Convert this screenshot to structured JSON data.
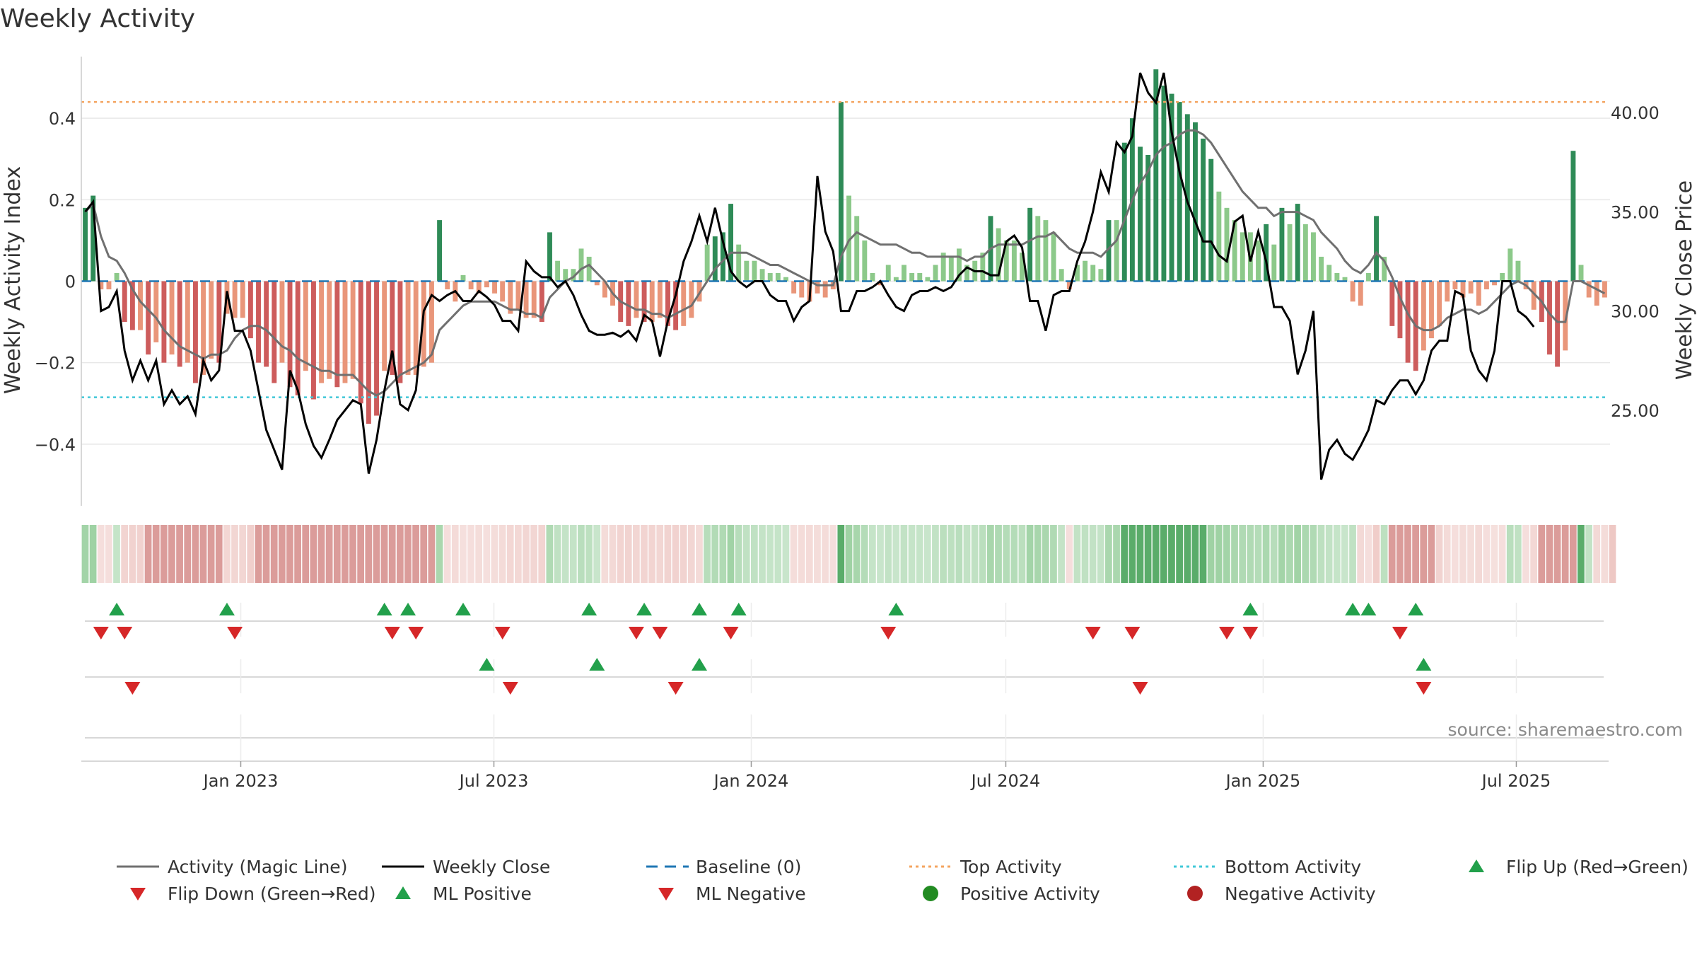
{
  "chart_data": {
    "type": "bar",
    "title": "Weekly Activity",
    "ylabel_left": "Weekly Activity Index",
    "ylabel_right": "Weekly Close Price",
    "source": "source: sharemaestro.com",
    "x_start": "2022-09-09",
    "x_end": "2025-09-05",
    "left_ylim": [
      -0.56,
      0.56
    ],
    "right_ylim": [
      20.0,
      43.0
    ],
    "left_ticks": [
      "0.4",
      "0.2",
      "0",
      "−0.2",
      "−0.4"
    ],
    "left_tick_values": [
      0.4,
      0.2,
      0,
      -0.2,
      -0.4
    ],
    "right_ticks": [
      "40.00",
      "35.00",
      "30.00",
      "25.00"
    ],
    "right_tick_values": [
      40,
      35,
      30,
      25
    ],
    "x_ticks": [
      "Jan 2023",
      "Jul 2023",
      "Jan 2024",
      "Jul 2024",
      "Jan 2025",
      "Jul 2025"
    ],
    "x_tick_dates": [
      "2023-01-01",
      "2023-07-01",
      "2024-01-01",
      "2024-07-01",
      "2025-01-01",
      "2025-07-01"
    ],
    "top_activity": 0.44,
    "bottom_activity": -0.285,
    "baseline": 0,
    "colors": {
      "pos_strong": "#2e8b57",
      "pos_light": "#8cc98a",
      "neg_strong": "#cd5c5c",
      "neg_light": "#e9967a",
      "magic_line": "#707070",
      "close_line": "#000000",
      "baseline": "#1f77b4",
      "top": "#f4a460",
      "bottom": "#40c8d8",
      "flip_up": "#22a04b",
      "flip_down": "#d62728",
      "pos_dot": "#228b22",
      "neg_dot": "#b22222"
    },
    "series": [
      {
        "name": "Activity",
        "type": "bar",
        "values": [
          0.18,
          0.21,
          -0.02,
          -0.02,
          0.02,
          -0.1,
          -0.12,
          -0.12,
          -0.18,
          -0.15,
          -0.2,
          -0.18,
          -0.21,
          -0.2,
          -0.25,
          -0.23,
          -0.19,
          -0.2,
          -0.08,
          -0.09,
          -0.09,
          -0.14,
          -0.2,
          -0.21,
          -0.25,
          -0.2,
          -0.26,
          -0.28,
          -0.22,
          -0.29,
          -0.25,
          -0.24,
          -0.26,
          -0.25,
          -0.24,
          -0.3,
          -0.35,
          -0.33,
          -0.22,
          -0.23,
          -0.25,
          -0.23,
          -0.23,
          -0.21,
          -0.2,
          0.15,
          -0.02,
          -0.05,
          0.015,
          -0.02,
          -0.03,
          -0.015,
          -0.03,
          -0.05,
          -0.08,
          -0.07,
          -0.09,
          -0.09,
          -0.1,
          0.12,
          0.05,
          0.03,
          0.03,
          0.08,
          0.06,
          -0.01,
          -0.04,
          -0.06,
          -0.1,
          -0.11,
          -0.09,
          -0.1,
          -0.1,
          -0.09,
          -0.11,
          -0.12,
          -0.11,
          -0.09,
          -0.05,
          0.09,
          0.11,
          0.12,
          0.19,
          0.09,
          0.05,
          0.05,
          0.03,
          0.02,
          0.02,
          0.01,
          -0.03,
          -0.04,
          -0.05,
          -0.03,
          -0.04,
          -0.02,
          0.44,
          0.21,
          0.16,
          0.1,
          0.02,
          -0.01,
          0.04,
          0.01,
          0.04,
          0.02,
          0.02,
          0.01,
          0.04,
          0.07,
          0.06,
          0.08,
          0.04,
          0.05,
          0.07,
          0.16,
          0.13,
          0.1,
          0.1,
          0.07,
          0.18,
          0.16,
          0.15,
          0.12,
          0.03,
          -0.02,
          0.04,
          0.05,
          0.04,
          0.03,
          0.15,
          0.15,
          0.34,
          0.4,
          0.33,
          0.31,
          0.52,
          0.48,
          0.46,
          0.44,
          0.41,
          0.39,
          0.35,
          0.3,
          0.22,
          0.18,
          0.15,
          0.12,
          0.12,
          0.1,
          0.14,
          0.09,
          0.18,
          0.14,
          0.19,
          0.14,
          0.12,
          0.06,
          0.04,
          0.02,
          0.01,
          -0.05,
          -0.06,
          0.02,
          0.16,
          0.06,
          -0.11,
          -0.14,
          -0.2,
          -0.22,
          -0.17,
          -0.14,
          -0.11,
          -0.05,
          -0.02,
          -0.04,
          -0.03,
          -0.06,
          -0.02,
          -0.01,
          0.02,
          0.08,
          0.05,
          -0.02,
          -0.07,
          -0.1,
          -0.18,
          -0.21,
          -0.17,
          0.32,
          0.04,
          -0.04,
          -0.06,
          -0.04
        ]
      },
      {
        "name": "Activity (Magic Line)",
        "type": "line",
        "values": [
          0.17,
          0.19,
          0.11,
          0.06,
          0.05,
          0.02,
          -0.02,
          -0.05,
          -0.07,
          -0.09,
          -0.12,
          -0.14,
          -0.16,
          -0.17,
          -0.18,
          -0.19,
          -0.18,
          -0.18,
          -0.17,
          -0.14,
          -0.12,
          -0.11,
          -0.11,
          -0.12,
          -0.14,
          -0.16,
          -0.17,
          -0.19,
          -0.2,
          -0.21,
          -0.22,
          -0.22,
          -0.23,
          -0.23,
          -0.23,
          -0.25,
          -0.27,
          -0.28,
          -0.27,
          -0.25,
          -0.23,
          -0.22,
          -0.21,
          -0.2,
          -0.18,
          -0.12,
          -0.1,
          -0.08,
          -0.06,
          -0.05,
          -0.05,
          -0.05,
          -0.05,
          -0.06,
          -0.07,
          -0.07,
          -0.08,
          -0.08,
          -0.09,
          -0.04,
          -0.02,
          0,
          0.01,
          0.03,
          0.04,
          0.02,
          0,
          -0.03,
          -0.05,
          -0.06,
          -0.07,
          -0.07,
          -0.08,
          -0.08,
          -0.09,
          -0.08,
          -0.07,
          -0.06,
          -0.03,
          0,
          0.03,
          0.05,
          0.07,
          0.07,
          0.07,
          0.06,
          0.05,
          0.04,
          0.04,
          0.03,
          0.02,
          0.01,
          0,
          -0.01,
          -0.01,
          -0.01,
          0.06,
          0.1,
          0.12,
          0.11,
          0.1,
          0.09,
          0.09,
          0.09,
          0.08,
          0.07,
          0.07,
          0.06,
          0.06,
          0.06,
          0.06,
          0.06,
          0.05,
          0.06,
          0.06,
          0.08,
          0.09,
          0.09,
          0.09,
          0.09,
          0.1,
          0.11,
          0.11,
          0.12,
          0.1,
          0.08,
          0.07,
          0.07,
          0.07,
          0.06,
          0.08,
          0.1,
          0.15,
          0.2,
          0.24,
          0.27,
          0.31,
          0.33,
          0.34,
          0.36,
          0.37,
          0.37,
          0.36,
          0.34,
          0.31,
          0.28,
          0.25,
          0.22,
          0.2,
          0.18,
          0.18,
          0.16,
          0.17,
          0.17,
          0.17,
          0.16,
          0.15,
          0.12,
          0.1,
          0.08,
          0.05,
          0.03,
          0.02,
          0.04,
          0.07,
          0.05,
          0.01,
          -0.04,
          -0.08,
          -0.11,
          -0.12,
          -0.12,
          -0.11,
          -0.09,
          -0.08,
          -0.07,
          -0.07,
          -0.08,
          -0.07,
          -0.05,
          -0.03,
          -0.01,
          0,
          -0.01,
          -0.03,
          -0.05,
          -0.08,
          -0.1,
          -0.1,
          0.0,
          0.0,
          -0.01,
          -0.02,
          -0.03
        ]
      },
      {
        "name": "Weekly Close",
        "type": "line",
        "axis": "right",
        "values": [
          35,
          35.5,
          30,
          30.2,
          31,
          28,
          26.5,
          27.5,
          26.5,
          27.5,
          25.3,
          26,
          25.3,
          25.7,
          24.8,
          27.5,
          26.5,
          27,
          31,
          29,
          29,
          28,
          26,
          24,
          23,
          22,
          27,
          26,
          24.3,
          23.2,
          22.6,
          23.5,
          24.5,
          25,
          25.5,
          25.3,
          21.8,
          23.5,
          26,
          28,
          25.3,
          25,
          26,
          30,
          30.8,
          30.5,
          30.8,
          31,
          30.5,
          30.5,
          31,
          30.7,
          30.3,
          29.5,
          29.5,
          29,
          32.5,
          32,
          31.7,
          31.7,
          31.2,
          31.5,
          30.8,
          29.8,
          29,
          28.8,
          28.8,
          28.9,
          28.7,
          29,
          28.5,
          29.8,
          29.5,
          27.7,
          29.5,
          30.8,
          32.5,
          33.5,
          34.8,
          33.5,
          35.2,
          33.5,
          32,
          31.5,
          31.2,
          31.5,
          31.5,
          30.8,
          30.5,
          30.5,
          29.5,
          30.2,
          30.5,
          36.8,
          34,
          33,
          30,
          30,
          31,
          31,
          31.2,
          31.5,
          30.8,
          30.2,
          30,
          30.8,
          31,
          31,
          31.2,
          31,
          31.2,
          31.8,
          32.2,
          32,
          32,
          31.8,
          31.8,
          33.5,
          33.8,
          33.2,
          30.5,
          30.5,
          29,
          30.8,
          31,
          31,
          32.5,
          33.5,
          35,
          37,
          36,
          38.5,
          38,
          38.8,
          42,
          41,
          40.5,
          42,
          39,
          37,
          35.5,
          34.5,
          33.5,
          33.5,
          32.8,
          32.5,
          34.5,
          34.8,
          32.5,
          34,
          32.5,
          30.2,
          30.2,
          29.5,
          26.8,
          28,
          30,
          21.5,
          23,
          23.5,
          22.8,
          22.5,
          23.2,
          24,
          25.5,
          25.3,
          26,
          26.5,
          26.5,
          25.8,
          26.5,
          28,
          28.5,
          28.5,
          31,
          30.8,
          28,
          27,
          26.5,
          28,
          31.5,
          31.5,
          30,
          29.7,
          29.2
        ]
      }
    ],
    "ribbon": [
      "pl",
      "pl",
      "nl",
      "nl",
      "pl",
      "nl",
      "nl",
      "nl",
      "ns",
      "ns",
      "ns",
      "ns",
      "ns",
      "ns",
      "ns",
      "ns",
      "ns",
      "ns",
      "nl",
      "nl",
      "nl",
      "nl",
      "ns",
      "ns",
      "ns",
      "ns",
      "ns",
      "ns",
      "ns",
      "ns",
      "ns",
      "ns",
      "ns",
      "ns",
      "ns",
      "ns",
      "ns",
      "ns",
      "ns",
      "ns",
      "ns",
      "ns",
      "ns",
      "ns",
      "ns",
      "pl",
      "nl",
      "nl",
      "nl",
      "nl",
      "nl",
      "nl",
      "nl",
      "nl",
      "nl",
      "nl",
      "nl",
      "nl",
      "nl",
      "pl",
      "pl",
      "pl",
      "pl",
      "pl",
      "pl",
      "pl",
      "nl",
      "nl",
      "nl",
      "nl",
      "nl",
      "nl",
      "nl",
      "nl",
      "nl",
      "nl",
      "nl",
      "nl",
      "nl",
      "pl",
      "pl",
      "pl",
      "pl",
      "pl",
      "pl",
      "pl",
      "pl",
      "pl",
      "pl",
      "pl",
      "nl",
      "nl",
      "nl",
      "nl",
      "nl",
      "nl",
      "ps",
      "pl",
      "pl",
      "pl",
      "pl",
      "pl",
      "pl",
      "pl",
      "pl",
      "pl",
      "pl",
      "pl",
      "pl",
      "pl",
      "pl",
      "pl",
      "pl",
      "pl",
      "pl",
      "pl",
      "pl",
      "pl",
      "pl",
      "pl",
      "pl",
      "pl",
      "pl",
      "pl",
      "pl",
      "nl",
      "pl",
      "pl",
      "pl",
      "pl",
      "pl",
      "pl",
      "ps",
      "ps",
      "ps",
      "ps",
      "ps",
      "ps",
      "ps",
      "ps",
      "ps",
      "ps",
      "ps",
      "pl",
      "pl",
      "pl",
      "pl",
      "pl",
      "pl",
      "pl",
      "pl",
      "pl",
      "pl",
      "pl",
      "pl",
      "pl",
      "pl",
      "pl",
      "pl",
      "pl",
      "pl",
      "pl",
      "nl",
      "nl",
      "nl",
      "pl",
      "ns",
      "ns",
      "ns",
      "ns",
      "ns",
      "ns",
      "nl",
      "nl",
      "nl",
      "nl",
      "nl",
      "nl",
      "nl",
      "nl",
      "nl",
      "pl",
      "pl",
      "nl",
      "nl",
      "ns",
      "ns",
      "ns",
      "ns",
      "ns",
      "ps",
      "pl",
      "nl",
      "nl",
      "nl"
    ],
    "flip_up_weeks": [
      4,
      18,
      38,
      41,
      48,
      64,
      71,
      78,
      83,
      103,
      148,
      161,
      163,
      169
    ],
    "flip_down_weeks": [
      2,
      5,
      19,
      39,
      42,
      53,
      70,
      73,
      82,
      102,
      128,
      133,
      145,
      148,
      167
    ],
    "ml_positive_weeks": [
      51,
      65,
      78,
      170
    ],
    "ml_negative_weeks": [
      6,
      54,
      75,
      134,
      170
    ],
    "legend": [
      {
        "label": "Activity (Magic Line)",
        "kind": "line",
        "color": "#707070"
      },
      {
        "label": "Weekly Close",
        "kind": "line",
        "color": "#000000"
      },
      {
        "label": "Baseline (0)",
        "kind": "dash",
        "color": "#1f77b4"
      },
      {
        "label": "Top Activity",
        "kind": "dot-line",
        "color": "#f4a460"
      },
      {
        "label": "Bottom Activity",
        "kind": "dot-line",
        "color": "#40c8d8"
      },
      {
        "label": "Flip Up (Red→Green)",
        "kind": "tri-up",
        "color": "#22a04b"
      },
      {
        "label": "Flip Down (Green→Red)",
        "kind": "tri-down",
        "color": "#d62728"
      },
      {
        "label": "ML Positive",
        "kind": "tri-up",
        "color": "#22a04b"
      },
      {
        "label": "ML Negative",
        "kind": "tri-down",
        "color": "#d62728"
      },
      {
        "label": "Positive Activity",
        "kind": "dot",
        "color": "#228b22"
      },
      {
        "label": "Negative Activity",
        "kind": "dot",
        "color": "#b22222"
      }
    ]
  }
}
